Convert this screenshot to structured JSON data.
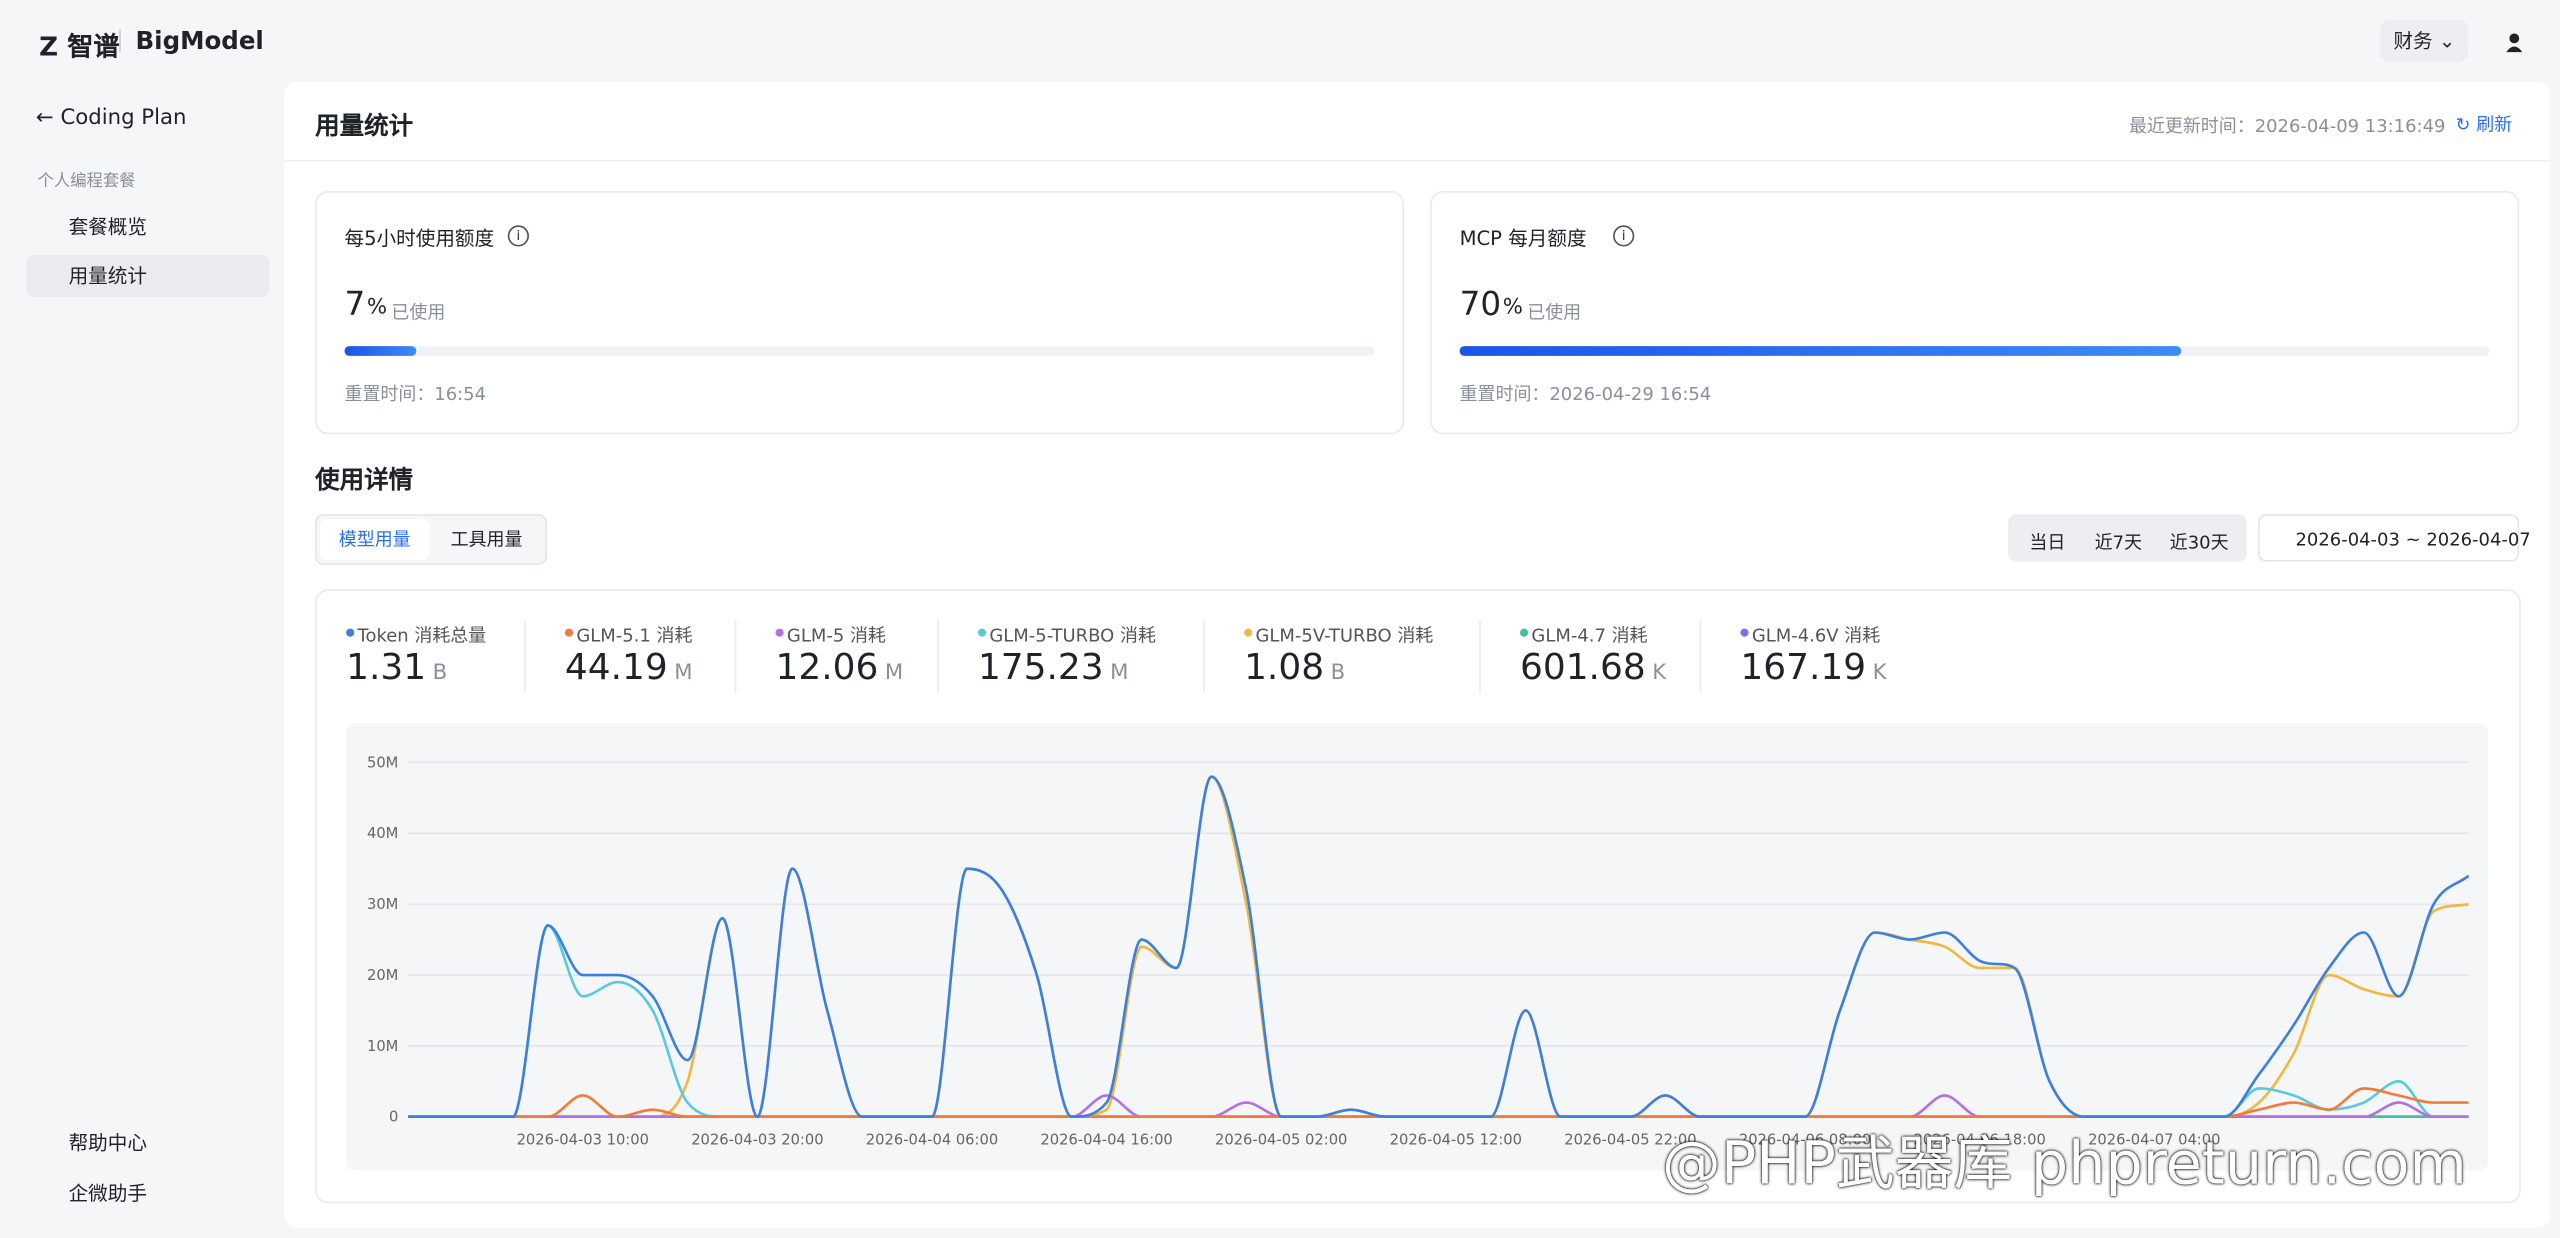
{
  "header": {
    "logo": "智谱",
    "product": "BigModel",
    "role": "财务"
  },
  "sidebar": {
    "back": "Coding Plan",
    "section": "个人编程套餐",
    "items": [
      "套餐概览",
      "用量统计"
    ],
    "bottom": [
      "帮助中心",
      "企微助手"
    ]
  },
  "page": {
    "title": "用量统计",
    "updated": "最近更新时间：2026-04-09 13:16:49",
    "refresh": "刷新"
  },
  "quotas": [
    {
      "title": "每5小时使用额度",
      "percent": 7,
      "unit": "%",
      "used_label": "已使用",
      "reset": "重置时间：16:54"
    },
    {
      "title": "MCP 每月额度",
      "percent": 70,
      "unit": "%",
      "used_label": "已使用",
      "reset": "重置时间：2026-04-29 16:54"
    }
  ],
  "details": {
    "title": "使用详情",
    "tabs": [
      "模型用量",
      "工具用量"
    ],
    "ranges": [
      "当日",
      "近7天",
      "近30天"
    ],
    "date_range": "2026-04-03 ~ 2026-04-07"
  },
  "watermark": "@PHP武器库 phpreturn.com",
  "chart_data": {
    "type": "line",
    "smooth": true,
    "grid": true,
    "categories": [
      null,
      null,
      null,
      null,
      null,
      "2026-04-03 10:00",
      null,
      null,
      null,
      null,
      "2026-04-03 20:00",
      null,
      null,
      null,
      null,
      "2026-04-04 06:00",
      null,
      null,
      null,
      null,
      "2026-04-04 16:00",
      null,
      null,
      null,
      null,
      "2026-04-05 02:00",
      null,
      null,
      null,
      null,
      "2026-04-05 12:00",
      null,
      null,
      null,
      null,
      "2026-04-05 22:00",
      null,
      null,
      null,
      null,
      "2026-04-06 08:00",
      null,
      null,
      null,
      null,
      "2026-04-06 18:00",
      null,
      null,
      null,
      null,
      "2026-04-07 04:00",
      null,
      null,
      null,
      null,
      null,
      null,
      null,
      null,
      null
    ],
    "ylim": [
      0,
      50
    ],
    "yticks": [
      0,
      {
        "value": 10,
        "label": "10M"
      },
      {
        "value": 20,
        "label": "20M"
      },
      {
        "value": 30,
        "label": "30M"
      },
      {
        "value": 40,
        "label": "40M"
      },
      {
        "value": 50,
        "label": "50M"
      }
    ],
    "series": [
      {
        "name": "Token 消耗总量",
        "color": "#3b7fe0",
        "total": 1.31,
        "unit": "B",
        "values": [
          0,
          0,
          0,
          0,
          27,
          20,
          20,
          17,
          8,
          28,
          0,
          35,
          15,
          0,
          0,
          0,
          35,
          32,
          20,
          0,
          2,
          25,
          21,
          48,
          32,
          0,
          0,
          1,
          0,
          0,
          0,
          0,
          15,
          0,
          0,
          0,
          3,
          0,
          0,
          0,
          0,
          15,
          26,
          25,
          26,
          22,
          21,
          5,
          0,
          0,
          0,
          0,
          0,
          6,
          13,
          21,
          26,
          17,
          30,
          34
        ]
      },
      {
        "name": "GLM-5.1 消耗",
        "color": "#f47a3a",
        "total": 44.19,
        "unit": "M",
        "values": [
          0,
          0,
          0,
          0,
          0,
          3,
          0,
          1,
          0,
          0,
          0,
          0,
          0,
          0,
          0,
          0,
          0,
          0,
          0,
          0,
          0,
          0,
          0,
          0,
          0,
          0,
          0,
          0,
          0,
          0,
          0,
          0,
          0,
          0,
          0,
          0,
          0,
          0,
          0,
          0,
          0,
          0,
          0,
          0,
          0,
          0,
          0,
          0,
          0,
          0,
          0,
          0,
          0,
          1,
          2,
          1,
          4,
          3,
          2,
          2
        ]
      },
      {
        "name": "GLM-5 消耗",
        "color": "#b46ee8",
        "total": 12.06,
        "unit": "M",
        "values": [
          0,
          0,
          0,
          0,
          0,
          0,
          0,
          0,
          0,
          0,
          0,
          0,
          0,
          0,
          0,
          0,
          0,
          0,
          0,
          0,
          3,
          0,
          0,
          0,
          2,
          0,
          0,
          0,
          0,
          0,
          0,
          0,
          0,
          0,
          0,
          0,
          0,
          0,
          0,
          0,
          0,
          0,
          0,
          0,
          3,
          0,
          0,
          0,
          0,
          0,
          0,
          0,
          0,
          0,
          0,
          0,
          0,
          2,
          0,
          0
        ]
      },
      {
        "name": "GLM-5-TURBO 消耗",
        "color": "#58c9e0",
        "total": 175.23,
        "unit": "M",
        "values": [
          0,
          0,
          0,
          0,
          27,
          17,
          19,
          15,
          2,
          0,
          0,
          0,
          0,
          0,
          0,
          0,
          0,
          0,
          0,
          0,
          0,
          0,
          0,
          0,
          0,
          0,
          0,
          0,
          0,
          0,
          0,
          0,
          0,
          0,
          0,
          0,
          0,
          0,
          0,
          0,
          0,
          0,
          0,
          0,
          0,
          0,
          0,
          0,
          0,
          0,
          0,
          0,
          0,
          4,
          3,
          1,
          2,
          5,
          0,
          0
        ]
      },
      {
        "name": "GLM-5V-TURBO 消耗",
        "color": "#f0b83c",
        "total": 1.08,
        "unit": "B",
        "values": [
          0,
          0,
          0,
          0,
          0,
          0,
          0,
          0,
          5,
          28,
          0,
          35,
          15,
          0,
          0,
          0,
          35,
          32,
          20,
          0,
          1,
          24,
          21,
          48,
          30,
          0,
          0,
          1,
          0,
          0,
          0,
          0,
          15,
          0,
          0,
          0,
          3,
          0,
          0,
          0,
          0,
          15,
          26,
          25,
          24,
          21,
          21,
          5,
          0,
          0,
          0,
          0,
          0,
          2,
          9,
          20,
          18,
          17,
          29,
          30
        ]
      },
      {
        "name": "GLM-4.7 消耗",
        "color": "#3ec2a0",
        "total": 601.68,
        "unit": "K",
        "values": [
          0,
          0,
          0,
          0,
          0,
          0,
          0,
          0,
          0,
          0,
          0,
          0,
          0,
          0,
          0,
          0,
          0,
          0,
          0,
          0,
          0,
          0,
          0,
          0,
          0,
          0,
          0,
          0,
          0,
          0,
          0,
          0,
          0,
          0,
          0,
          0,
          0,
          0,
          0,
          0,
          0,
          0,
          0,
          0,
          0,
          0,
          0,
          0,
          0,
          0,
          0,
          0,
          0,
          0,
          0,
          0,
          0,
          0,
          0,
          0
        ]
      },
      {
        "name": "GLM-4.6V 消耗",
        "color": "#7c6cf0",
        "total": 167.19,
        "unit": "K",
        "values": [
          0,
          0,
          0,
          0,
          0,
          0,
          0,
          0,
          0,
          0,
          0,
          0,
          0,
          0,
          0,
          0,
          0,
          0,
          0,
          0,
          0,
          0,
          0,
          0,
          0,
          0,
          0,
          0,
          0,
          0,
          0,
          0,
          0,
          0,
          0,
          0,
          0,
          0,
          0,
          0,
          0,
          0,
          0,
          0,
          0,
          0,
          0,
          0,
          0,
          0,
          0,
          0,
          0,
          0,
          0,
          0,
          0,
          0,
          0,
          0
        ]
      }
    ]
  }
}
